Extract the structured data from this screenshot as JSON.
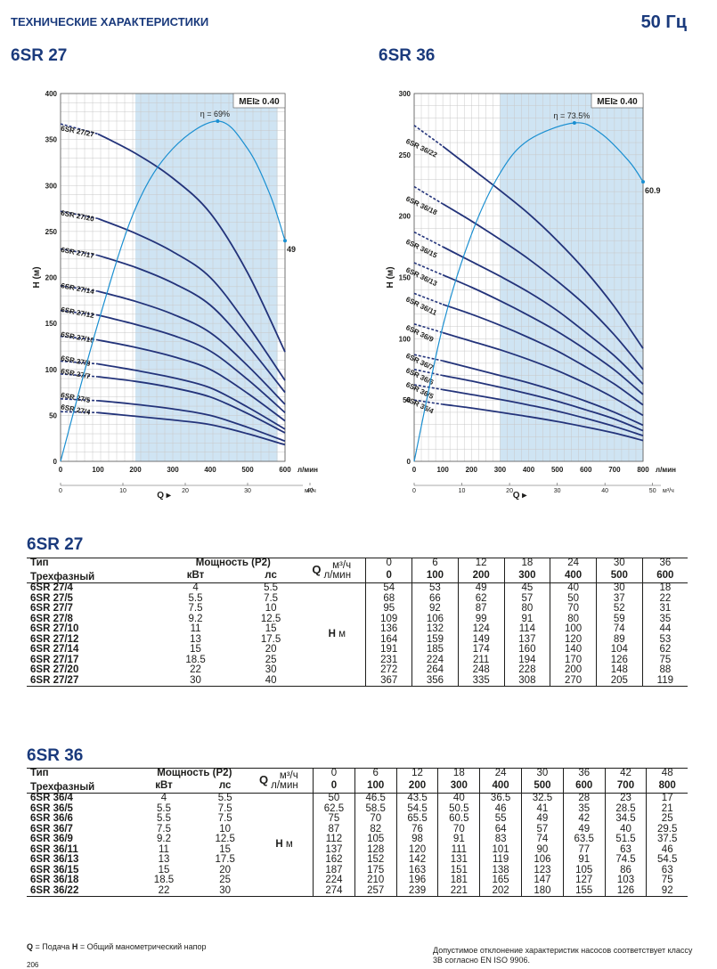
{
  "header": {
    "title": "ТЕХНИЧЕСКИЕ ХАРАКТЕРИСТИКИ",
    "frequency": "50 Гц"
  },
  "chart_data": [
    {
      "type": "line",
      "title": "6SR 27",
      "xlabel": "Q",
      "ylabel": "H (м)",
      "x_unit": "л/мин",
      "x2_unit": "м³/ч",
      "xlim": [
        0,
        600
      ],
      "ylim": [
        0,
        400
      ],
      "x_ticks": [
        0,
        100,
        200,
        300,
        400,
        500,
        600
      ],
      "y_ticks": [
        0,
        50,
        100,
        150,
        200,
        250,
        300,
        350,
        400
      ],
      "x2_ticks": [
        0,
        10,
        20,
        30,
        40
      ],
      "mei": "MEI≥ 0.40",
      "efficiency_label": "η = 69%",
      "efficiency_end_label": "49",
      "band": [
        200,
        580
      ],
      "grid": true,
      "x": [
        0,
        100,
        200,
        300,
        400,
        500,
        600
      ],
      "series": [
        {
          "name": "6SR 27/4",
          "values": [
            54,
            53,
            49,
            45,
            40,
            30,
            18
          ]
        },
        {
          "name": "6SR 27/5",
          "values": [
            68,
            66,
            62,
            57,
            50,
            37,
            22
          ]
        },
        {
          "name": "6SR 27/7",
          "values": [
            95,
            92,
            87,
            80,
            70,
            52,
            31
          ]
        },
        {
          "name": "6SR 27/8",
          "values": [
            109,
            106,
            99,
            91,
            80,
            59,
            35
          ]
        },
        {
          "name": "6SR 27/10",
          "values": [
            136,
            132,
            124,
            114,
            100,
            74,
            44
          ]
        },
        {
          "name": "6SR 27/12",
          "values": [
            164,
            159,
            149,
            137,
            120,
            89,
            53
          ]
        },
        {
          "name": "6SR 27/14",
          "values": [
            191,
            185,
            174,
            160,
            140,
            104,
            62
          ]
        },
        {
          "name": "6SR 27/17",
          "values": [
            231,
            224,
            211,
            194,
            170,
            126,
            75
          ]
        },
        {
          "name": "6SR 27/20",
          "values": [
            272,
            264,
            248,
            228,
            200,
            148,
            88
          ]
        },
        {
          "name": "6SR 27/27",
          "values": [
            367,
            356,
            335,
            308,
            270,
            205,
            119
          ]
        }
      ],
      "efficiency_curve": [
        [
          0,
          0
        ],
        [
          100,
          150
        ],
        [
          200,
          275
        ],
        [
          300,
          340
        ],
        [
          420,
          370
        ],
        [
          500,
          340
        ],
        [
          560,
          290
        ],
        [
          600,
          240
        ]
      ]
    },
    {
      "type": "line",
      "title": "6SR 36",
      "xlabel": "Q",
      "ylabel": "H (м)",
      "x_unit": "л/мин",
      "x2_unit": "м³/ч",
      "xlim": [
        0,
        800
      ],
      "ylim": [
        0,
        300
      ],
      "x_ticks": [
        0,
        100,
        200,
        300,
        400,
        500,
        600,
        700,
        800
      ],
      "y_ticks": [
        0,
        50,
        100,
        150,
        200,
        250,
        300
      ],
      "x2_ticks": [
        0,
        10,
        20,
        30,
        40,
        50
      ],
      "mei": "MEI≥ 0.40",
      "efficiency_label": "η = 73.5%",
      "efficiency_end_label": "60.9",
      "band": [
        300,
        800
      ],
      "grid": true,
      "x": [
        0,
        100,
        200,
        300,
        400,
        500,
        600,
        700,
        800
      ],
      "series": [
        {
          "name": "6SR 36/4",
          "values": [
            50,
            46.5,
            43.5,
            40,
            36.5,
            32.5,
            28,
            23,
            17
          ]
        },
        {
          "name": "6SR 36/5",
          "values": [
            62.5,
            58.5,
            54.5,
            50.5,
            46,
            41,
            35,
            28.5,
            21
          ]
        },
        {
          "name": "6SR 36/6",
          "values": [
            75,
            70,
            65.5,
            60.5,
            55,
            49,
            42,
            34.5,
            25
          ]
        },
        {
          "name": "6SR 36/7",
          "values": [
            87,
            82,
            76,
            70,
            64,
            57,
            49,
            40,
            29.5
          ]
        },
        {
          "name": "6SR 36/9",
          "values": [
            112,
            105,
            98,
            91,
            83,
            74,
            63.5,
            51.5,
            37.5
          ]
        },
        {
          "name": "6SR 36/11",
          "values": [
            137,
            128,
            120,
            111,
            101,
            90,
            77,
            63,
            46
          ]
        },
        {
          "name": "6SR 36/13",
          "values": [
            162,
            152,
            142,
            131,
            119,
            106,
            91,
            74.5,
            54.5
          ]
        },
        {
          "name": "6SR 36/15",
          "values": [
            187,
            175,
            163,
            151,
            138,
            123,
            105,
            86,
            63
          ]
        },
        {
          "name": "6SR 36/18",
          "values": [
            224,
            210,
            196,
            181,
            165,
            147,
            127,
            103,
            75
          ]
        },
        {
          "name": "6SR 36/22",
          "values": [
            274,
            257,
            239,
            221,
            202,
            180,
            155,
            126,
            92
          ]
        }
      ],
      "efficiency_curve": [
        [
          0,
          0
        ],
        [
          100,
          110
        ],
        [
          200,
          185
        ],
        [
          300,
          235
        ],
        [
          400,
          262
        ],
        [
          560,
          276
        ],
        [
          650,
          268
        ],
        [
          750,
          245
        ],
        [
          800,
          228
        ]
      ]
    }
  ],
  "tables": {
    "t27": {
      "title": "6SR 27",
      "col_type": "Тип",
      "col_type2": "Трехфазный",
      "col_power": "Мощность (P2)",
      "col_kw": "кВт",
      "col_hp": "лс",
      "q": "Q",
      "q_unit1": "м³/ч",
      "q_unit2": "л/мин",
      "h": "H",
      "h_unit": "м",
      "flows_m3h": [
        "0",
        "6",
        "12",
        "18",
        "24",
        "30",
        "36"
      ],
      "flows_lmin": [
        "0",
        "100",
        "200",
        "300",
        "400",
        "500",
        "600"
      ],
      "rows": [
        {
          "name": "6SR 27/4",
          "kw": "4",
          "hp": "5.5",
          "h": [
            "54",
            "53",
            "49",
            "45",
            "40",
            "30",
            "18"
          ]
        },
        {
          "name": "6SR 27/5",
          "kw": "5.5",
          "hp": "7.5",
          "h": [
            "68",
            "66",
            "62",
            "57",
            "50",
            "37",
            "22"
          ]
        },
        {
          "name": "6SR 27/7",
          "kw": "7.5",
          "hp": "10",
          "h": [
            "95",
            "92",
            "87",
            "80",
            "70",
            "52",
            "31"
          ]
        },
        {
          "name": "6SR 27/8",
          "kw": "9.2",
          "hp": "12.5",
          "h": [
            "109",
            "106",
            "99",
            "91",
            "80",
            "59",
            "35"
          ]
        },
        {
          "name": "6SR 27/10",
          "kw": "11",
          "hp": "15",
          "h": [
            "136",
            "132",
            "124",
            "114",
            "100",
            "74",
            "44"
          ]
        },
        {
          "name": "6SR 27/12",
          "kw": "13",
          "hp": "17.5",
          "h": [
            "164",
            "159",
            "149",
            "137",
            "120",
            "89",
            "53"
          ]
        },
        {
          "name": "6SR 27/14",
          "kw": "15",
          "hp": "20",
          "h": [
            "191",
            "185",
            "174",
            "160",
            "140",
            "104",
            "62"
          ]
        },
        {
          "name": "6SR 27/17",
          "kw": "18.5",
          "hp": "25",
          "h": [
            "231",
            "224",
            "211",
            "194",
            "170",
            "126",
            "75"
          ]
        },
        {
          "name": "6SR 27/20",
          "kw": "22",
          "hp": "30",
          "h": [
            "272",
            "264",
            "248",
            "228",
            "200",
            "148",
            "88"
          ]
        },
        {
          "name": "6SR 27/27",
          "kw": "30",
          "hp": "40",
          "h": [
            "367",
            "356",
            "335",
            "308",
            "270",
            "205",
            "119"
          ]
        }
      ]
    },
    "t36": {
      "title": "6SR 36",
      "col_type": "Тип",
      "col_type2": "Трехфазный",
      "col_power": "Мощность (P2)",
      "col_kw": "кВт",
      "col_hp": "лс",
      "q": "Q",
      "q_unit1": "м³/ч",
      "q_unit2": "л/мин",
      "h": "H",
      "h_unit": "м",
      "flows_m3h": [
        "0",
        "6",
        "12",
        "18",
        "24",
        "30",
        "36",
        "42",
        "48"
      ],
      "flows_lmin": [
        "0",
        "100",
        "200",
        "300",
        "400",
        "500",
        "600",
        "700",
        "800"
      ],
      "rows": [
        {
          "name": "6SR 36/4",
          "kw": "4",
          "hp": "5.5",
          "h": [
            "50",
            "46.5",
            "43.5",
            "40",
            "36.5",
            "32.5",
            "28",
            "23",
            "17"
          ]
        },
        {
          "name": "6SR 36/5",
          "kw": "5.5",
          "hp": "7.5",
          "h": [
            "62.5",
            "58.5",
            "54.5",
            "50.5",
            "46",
            "41",
            "35",
            "28.5",
            "21"
          ]
        },
        {
          "name": "6SR 36/6",
          "kw": "5.5",
          "hp": "7.5",
          "h": [
            "75",
            "70",
            "65.5",
            "60.5",
            "55",
            "49",
            "42",
            "34.5",
            "25"
          ]
        },
        {
          "name": "6SR 36/7",
          "kw": "7.5",
          "hp": "10",
          "h": [
            "87",
            "82",
            "76",
            "70",
            "64",
            "57",
            "49",
            "40",
            "29.5"
          ]
        },
        {
          "name": "6SR 36/9",
          "kw": "9.2",
          "hp": "12.5",
          "h": [
            "112",
            "105",
            "98",
            "91",
            "83",
            "74",
            "63.5",
            "51.5",
            "37.5"
          ]
        },
        {
          "name": "6SR 36/11",
          "kw": "11",
          "hp": "15",
          "h": [
            "137",
            "128",
            "120",
            "111",
            "101",
            "90",
            "77",
            "63",
            "46"
          ]
        },
        {
          "name": "6SR 36/13",
          "kw": "13",
          "hp": "17.5",
          "h": [
            "162",
            "152",
            "142",
            "131",
            "119",
            "106",
            "91",
            "74.5",
            "54.5"
          ]
        },
        {
          "name": "6SR 36/15",
          "kw": "15",
          "hp": "20",
          "h": [
            "187",
            "175",
            "163",
            "151",
            "138",
            "123",
            "105",
            "86",
            "63"
          ]
        },
        {
          "name": "6SR 36/18",
          "kw": "18.5",
          "hp": "25",
          "h": [
            "224",
            "210",
            "196",
            "181",
            "165",
            "147",
            "127",
            "103",
            "75"
          ]
        },
        {
          "name": "6SR 36/22",
          "kw": "22",
          "hp": "30",
          "h": [
            "274",
            "257",
            "239",
            "221",
            "202",
            "180",
            "155",
            "126",
            "92"
          ]
        }
      ]
    }
  },
  "footer": {
    "legend_q": "Q",
    "legend_q_text": "= Подача",
    "legend_h": "H",
    "legend_h_text": "= Общий манометрический напор",
    "note1": "Допустимое отклонение характеристик насосов соответствует классу",
    "note2": "3B согласно EN ISO 9906.",
    "page": "206"
  },
  "colors": {
    "brand": "#1a3a7c",
    "curve": "#23337a",
    "efficiency": "#1a8fd1",
    "band": "#cfe4f3",
    "grid": "#c8c8c8"
  }
}
